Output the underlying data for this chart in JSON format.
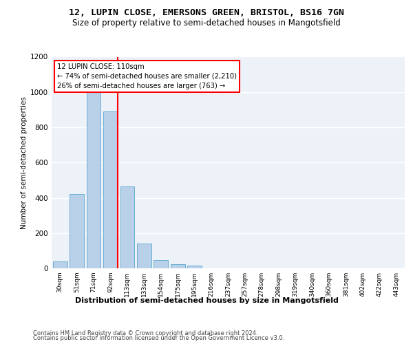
{
  "title_line1": "12, LUPIN CLOSE, EMERSONS GREEN, BRISTOL, BS16 7GN",
  "title_line2": "Size of property relative to semi-detached houses in Mangotsfield",
  "xlabel": "Distribution of semi-detached houses by size in Mangotsfield",
  "ylabel": "Number of semi-detached properties",
  "footer1": "Contains HM Land Registry data © Crown copyright and database right 2024.",
  "footer2": "Contains public sector information licensed under the Open Government Licence v3.0.",
  "annotation_line1": "12 LUPIN CLOSE: 110sqm",
  "annotation_line2": "← 74% of semi-detached houses are smaller (2,210)",
  "annotation_line3": "26% of semi-detached houses are larger (763) →",
  "bin_labels": [
    "30sqm",
    "51sqm",
    "71sqm",
    "92sqm",
    "113sqm",
    "133sqm",
    "154sqm",
    "175sqm",
    "195sqm",
    "216sqm",
    "237sqm",
    "257sqm",
    "278sqm",
    "298sqm",
    "319sqm",
    "340sqm",
    "360sqm",
    "381sqm",
    "402sqm",
    "422sqm",
    "443sqm"
  ],
  "values": [
    40,
    420,
    1000,
    890,
    465,
    140,
    48,
    25,
    15,
    0,
    0,
    0,
    0,
    0,
    0,
    0,
    0,
    0,
    0,
    0,
    0
  ],
  "bar_color": "#b8d0e8",
  "bar_edge_color": "#6aaed6",
  "vline_color": "red",
  "vline_pos": 3.43,
  "annotation_box_color": "white",
  "annotation_box_edge": "red",
  "ylim": [
    0,
    1200
  ],
  "yticks": [
    0,
    200,
    400,
    600,
    800,
    1000,
    1200
  ],
  "bg_color": "#edf2f9",
  "grid_color": "white"
}
